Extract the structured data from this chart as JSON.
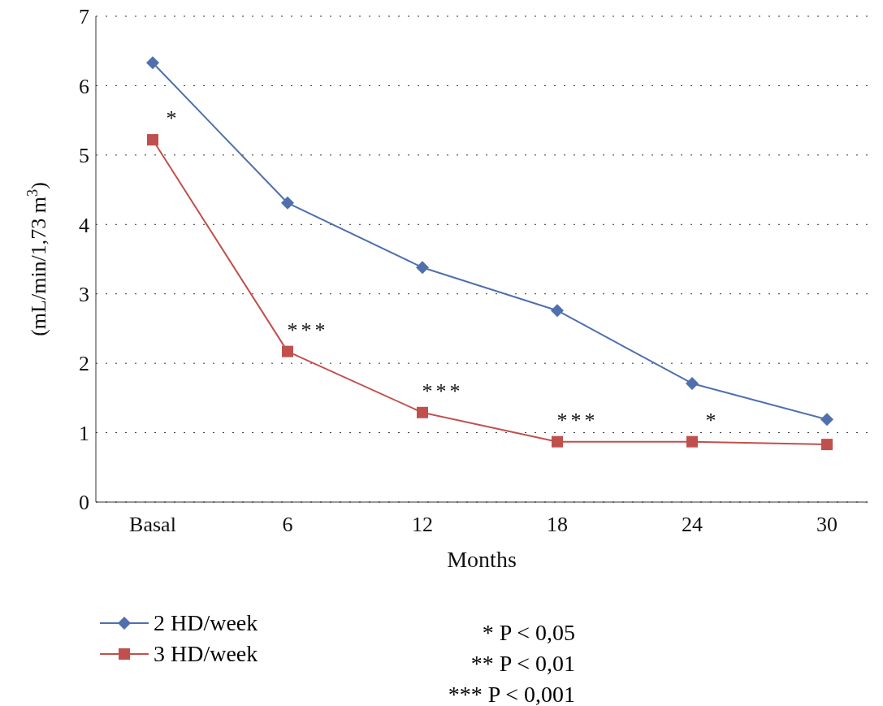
{
  "chart_data": {
    "type": "line",
    "xlabel": "Months",
    "ylabel": "(mL/min/1,73 m$^{3}$)",
    "categories": [
      "Basal",
      "6",
      "12",
      "18",
      "24",
      "30"
    ],
    "ylim": [
      0,
      7
    ],
    "yticks": [
      0,
      1,
      2,
      3,
      4,
      5,
      6,
      7
    ],
    "grid": "y",
    "legend": "bottom left",
    "series": [
      {
        "name": "2 HD/week",
        "color": "#4f6fae",
        "marker": "diamond",
        "values": [
          6.33,
          4.31,
          3.38,
          2.76,
          1.71,
          1.19
        ]
      },
      {
        "name": "3 HD/week",
        "color": "#c0504d",
        "marker": "square",
        "values": [
          5.22,
          2.17,
          1.29,
          0.87,
          0.87,
          0.83
        ]
      }
    ],
    "annotations": [
      {
        "text": "*",
        "x": "Basal",
        "y": 5.22
      },
      {
        "text": "***",
        "x": "6",
        "y": 2.17
      },
      {
        "text": "***",
        "x": "12",
        "y": 1.29
      },
      {
        "text": "***",
        "x": "18",
        "y": 0.87
      },
      {
        "text": "*",
        "x": "24",
        "y": 0.87
      },
      "* P < 0,05",
      "** P < 0,01",
      "*** P < 0,001"
    ]
  }
}
